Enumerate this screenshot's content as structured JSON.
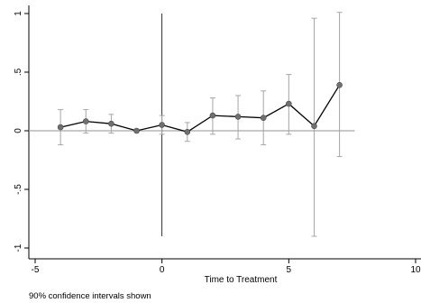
{
  "chart_data": {
    "type": "scatter",
    "title": "",
    "xlabel": "Time to Treatment",
    "ylabel": "",
    "note": "90% confidence intervals shown",
    "xlim": [
      -5,
      10
    ],
    "ylim": [
      -1,
      1
    ],
    "x_ticks": [
      -5,
      0,
      5,
      10
    ],
    "x_tick_labels": [
      "-5",
      "0",
      "5",
      "10"
    ],
    "y_ticks": [
      -1,
      -0.5,
      0,
      0.5,
      1
    ],
    "y_tick_labels": [
      "-1",
      "-.5",
      "0",
      ".5",
      "1"
    ],
    "reference_lines": {
      "y": 0,
      "x": 0
    },
    "grid": false,
    "series": [
      {
        "x": [
          -4,
          -3,
          -2,
          -1,
          0,
          1,
          2,
          3,
          4,
          5,
          6,
          7
        ],
        "y": [
          0.03,
          0.08,
          0.06,
          0.0,
          0.05,
          -0.01,
          0.13,
          0.12,
          0.11,
          0.23,
          0.04,
          0.39
        ],
        "ci_low": [
          -0.12,
          -0.02,
          -0.02,
          0.0,
          -0.03,
          -0.09,
          -0.03,
          -0.07,
          -0.12,
          -0.03,
          -0.9,
          -0.22
        ],
        "ci_high": [
          0.18,
          0.18,
          0.14,
          0.0,
          0.13,
          0.07,
          0.28,
          0.3,
          0.34,
          0.48,
          0.96,
          1.01
        ]
      }
    ],
    "colors": {
      "line": "#000000",
      "marker": "#707070",
      "ci": "#a6a6a6",
      "reference": "#a6a6a6",
      "vline": "#000000"
    }
  }
}
